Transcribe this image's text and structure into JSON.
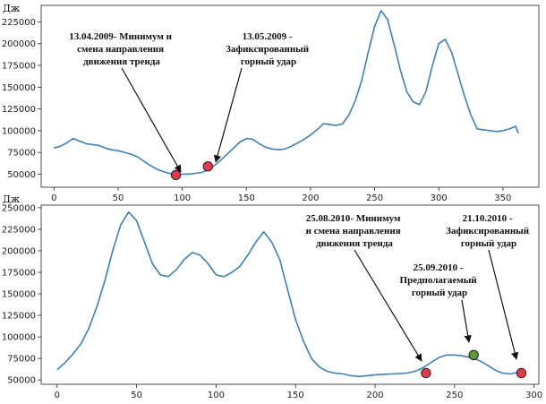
{
  "chart_data": [
    {
      "type": "line",
      "ylabel": "Дж",
      "xlim": [
        -10,
        378
      ],
      "ylim": [
        35000,
        244000
      ],
      "xticks": [
        0,
        50,
        100,
        150,
        200,
        250,
        300,
        350
      ],
      "yticks": [
        50000,
        75000,
        100000,
        125000,
        150000,
        175000,
        200000,
        225000
      ],
      "grid": false,
      "series": [
        {
          "color": "#3f7fb3",
          "x": [
            0,
            5,
            10,
            15,
            20,
            25,
            30,
            35,
            40,
            45,
            50,
            55,
            60,
            65,
            70,
            75,
            80,
            85,
            90,
            95,
            100,
            105,
            110,
            115,
            120,
            125,
            130,
            135,
            140,
            145,
            150,
            155,
            160,
            165,
            170,
            175,
            180,
            185,
            190,
            195,
            200,
            205,
            210,
            215,
            220,
            225,
            230,
            235,
            240,
            245,
            250,
            255,
            260,
            265,
            270,
            275,
            280,
            285,
            290,
            295,
            300,
            305,
            310,
            315,
            320,
            325,
            330,
            335,
            340,
            345,
            350,
            355,
            360,
            362
          ],
          "values": [
            80000,
            82000,
            86000,
            91000,
            88000,
            85000,
            84000,
            83000,
            80000,
            78000,
            77000,
            75000,
            73000,
            70000,
            65000,
            60000,
            56000,
            53000,
            51000,
            49000,
            50000,
            50000,
            51000,
            52000,
            55000,
            60000,
            66000,
            73000,
            80000,
            87000,
            91000,
            90000,
            85000,
            81000,
            79000,
            78000,
            79000,
            82000,
            86000,
            90000,
            95000,
            101000,
            108000,
            107000,
            106000,
            108000,
            118000,
            135000,
            158000,
            190000,
            220000,
            238000,
            228000,
            200000,
            170000,
            145000,
            133000,
            130000,
            145000,
            175000,
            200000,
            205000,
            190000,
            165000,
            140000,
            118000,
            102000,
            101000,
            100000,
            99000,
            100000,
            102000,
            105000,
            97000
          ]
        }
      ],
      "points": [
        {
          "x": 95,
          "y": 49000,
          "color": "#e03a4c"
        },
        {
          "x": 120,
          "y": 59000,
          "color": "#e03a4c"
        }
      ],
      "annotations": [
        {
          "lines": [
            "13.04.2009- Минимум  и",
            "смена направления",
            "движения тренда"
          ]
        },
        {
          "lines": [
            "13.05.2009 -",
            "Зафиксированный",
            "горный удар"
          ]
        }
      ]
    },
    {
      "type": "line",
      "ylabel": "Дж",
      "xlim": [
        -10,
        303
      ],
      "ylim": [
        45000,
        253000
      ],
      "xticks": [
        0,
        50,
        100,
        150,
        200,
        250,
        300
      ],
      "yticks": [
        50000,
        75000,
        100000,
        125000,
        150000,
        175000,
        200000,
        225000,
        250000
      ],
      "grid": false,
      "series": [
        {
          "color": "#3f7fb3",
          "x": [
            0,
            5,
            10,
            15,
            20,
            25,
            30,
            35,
            40,
            45,
            50,
            55,
            60,
            65,
            70,
            75,
            80,
            85,
            90,
            95,
            100,
            105,
            110,
            115,
            120,
            125,
            130,
            135,
            140,
            145,
            150,
            155,
            160,
            165,
            170,
            175,
            180,
            185,
            190,
            195,
            200,
            205,
            210,
            215,
            220,
            225,
            230,
            235,
            240,
            245,
            250,
            255,
            260,
            265,
            270,
            275,
            280,
            285,
            290,
            292
          ],
          "values": [
            62000,
            70000,
            80000,
            92000,
            110000,
            135000,
            165000,
            200000,
            230000,
            245000,
            235000,
            210000,
            185000,
            172000,
            170000,
            178000,
            190000,
            198000,
            195000,
            185000,
            172000,
            170000,
            175000,
            182000,
            195000,
            210000,
            222000,
            210000,
            190000,
            155000,
            120000,
            95000,
            75000,
            65000,
            60000,
            58000,
            57000,
            55000,
            54000,
            55000,
            56000,
            56500,
            57000,
            57500,
            58000,
            60000,
            64000,
            70000,
            76000,
            79000,
            79000,
            78000,
            76000,
            73000,
            68000,
            62000,
            58000,
            57000,
            59000,
            58000
          ]
        }
      ],
      "points": [
        {
          "x": 232,
          "y": 58000,
          "color": "#e03a4c"
        },
        {
          "x": 262,
          "y": 79000,
          "color": "#5a9a3a"
        },
        {
          "x": 292,
          "y": 58000,
          "color": "#e03a4c"
        }
      ],
      "annotations": [
        {
          "lines": [
            "25.08.2010- Минимум",
            "и смена направления",
            "движения тренда"
          ]
        },
        {
          "lines": [
            "25.09.2010 -",
            "Предполагаемый",
            "горный удар"
          ]
        },
        {
          "lines": [
            "21.10.2010 -",
            "Зафиксированный",
            "горный удар"
          ]
        }
      ]
    }
  ]
}
